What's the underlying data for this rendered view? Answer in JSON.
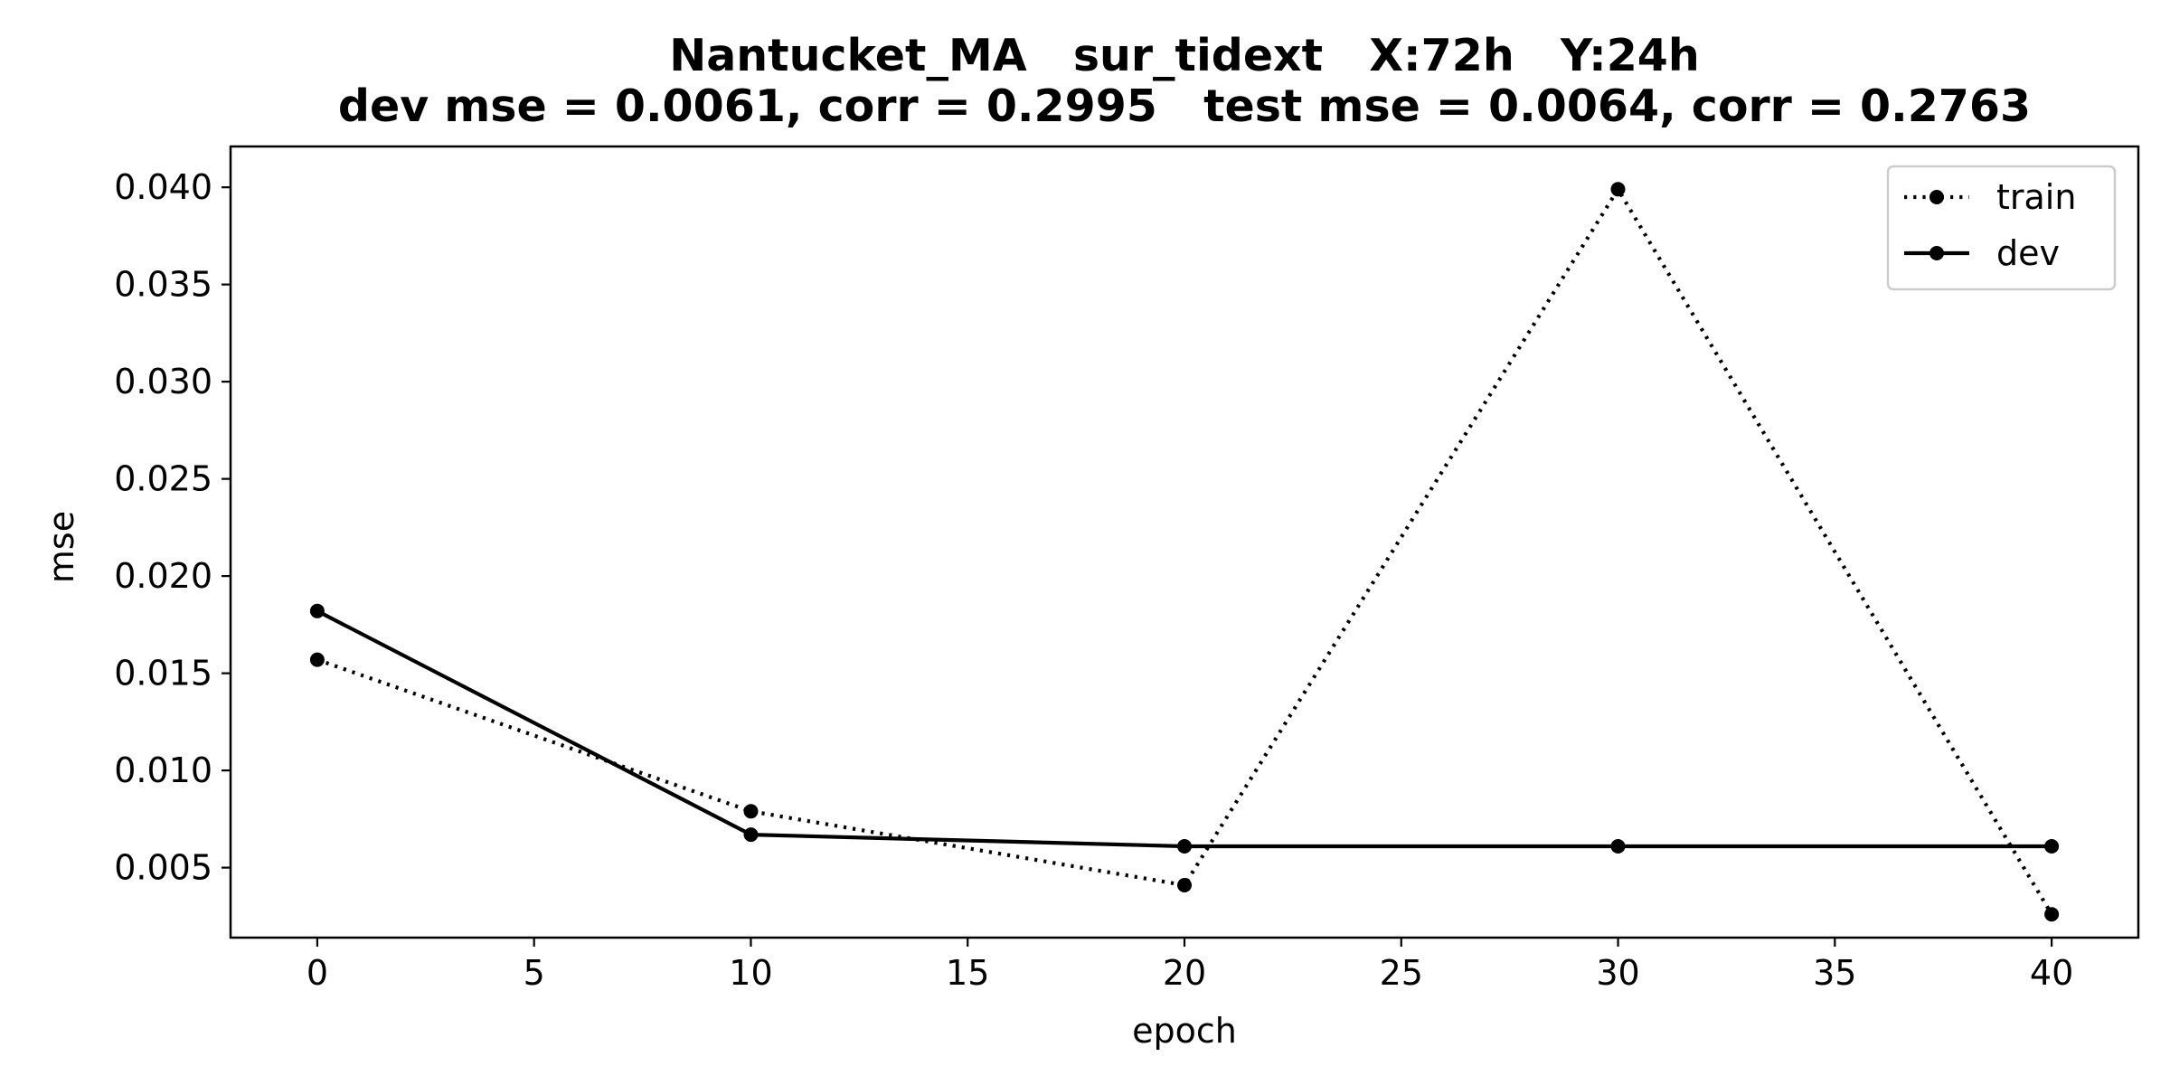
{
  "chart_data": {
    "type": "line",
    "title_line1": "Nantucket_MA   sur_tidext   X:72h   Y:24h",
    "title_line2": "dev mse = 0.0061, corr = 0.2995   test mse = 0.0064, corr = 0.2763",
    "xlabel": "epoch",
    "ylabel": "mse",
    "xlim": [
      -2,
      42
    ],
    "ylim": [
      0.0014,
      0.0421
    ],
    "xticks": [
      0,
      5,
      10,
      15,
      20,
      25,
      30,
      35,
      40
    ],
    "yticks": [
      0.005,
      0.01,
      0.015,
      0.02,
      0.025,
      0.03,
      0.035,
      0.04
    ],
    "ytick_labels": [
      "0.005",
      "0.010",
      "0.015",
      "0.020",
      "0.025",
      "0.030",
      "0.035",
      "0.040"
    ],
    "legend_position": "upper right",
    "grid": false,
    "x": [
      0,
      10,
      20,
      30,
      40
    ],
    "series": [
      {
        "name": "train",
        "style": "dotted",
        "color": "#000000",
        "values": [
          0.0157,
          0.0079,
          0.0041,
          0.0399,
          0.0026
        ]
      },
      {
        "name": "dev",
        "style": "solid",
        "color": "#000000",
        "values": [
          0.0182,
          0.0067,
          0.0061,
          0.0061,
          0.0061
        ]
      }
    ]
  }
}
